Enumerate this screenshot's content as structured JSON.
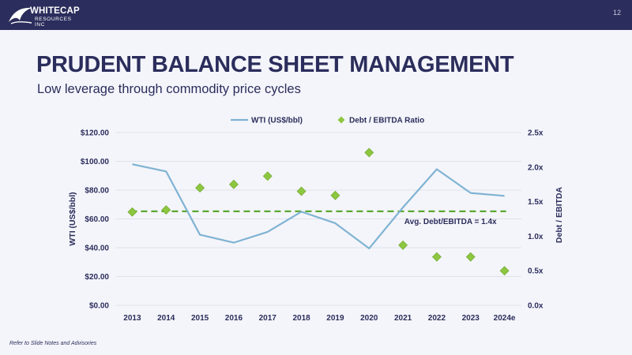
{
  "header": {
    "logo_name": "WHITECAP",
    "logo_sub": "RESOURCES INC",
    "page_number": "12"
  },
  "slide": {
    "title": "PRUDENT BALANCE SHEET MANAGEMENT",
    "subtitle": "Low leverage through commodity price cycles"
  },
  "colors": {
    "brand_navy": "#2b2d5c",
    "wti_line": "#7fb3d3",
    "ratio_marker": "#8dc63f",
    "avg_line": "#5aa830"
  },
  "chart_data": {
    "type": "line",
    "categories": [
      "2013",
      "2014",
      "2015",
      "2016",
      "2017",
      "2018",
      "2019",
      "2020",
      "2021",
      "2022",
      "2023",
      "2024e"
    ],
    "series": [
      {
        "name": "WTI (US$/bbl)",
        "axis": "left",
        "style": "line",
        "values": [
          98,
          93,
          49,
          43.5,
          51,
          65,
          57,
          39.5,
          68,
          94.5,
          78,
          76
        ]
      },
      {
        "name": "Debt / EBITDA Ratio",
        "axis": "right",
        "style": "marker-diamond",
        "values": [
          1.35,
          1.38,
          1.7,
          1.75,
          1.87,
          1.65,
          1.59,
          2.21,
          0.87,
          0.7,
          0.7,
          0.5
        ]
      }
    ],
    "average_line": {
      "label": "Avg. Debt/EBITDA = 1.4x",
      "value": 1.36,
      "axis": "right"
    },
    "ylabel": "WTI (US$/bbl)",
    "y2label": "Debt / EBITDA",
    "ylim": [
      0,
      120
    ],
    "y2lim": [
      0,
      2.5
    ],
    "yticks": [
      "$0.00",
      "$20.00",
      "$40.00",
      "$60.00",
      "$80.00",
      "$100.00",
      "$120.00"
    ],
    "y2ticks": [
      "0.0x",
      "0.5x",
      "1.0x",
      "1.5x",
      "2.0x",
      "2.5x"
    ],
    "grid": "horizontal",
    "legend": "top-center"
  },
  "footer": {
    "note": "Refer to Slide Notes and Advisories"
  }
}
